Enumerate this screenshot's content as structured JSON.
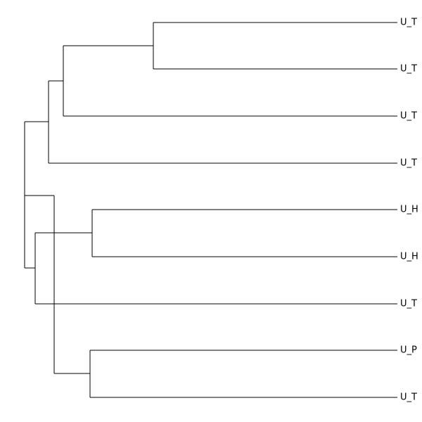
{
  "leaves": [
    "U_T",
    "U_T",
    "U_T",
    "U_T",
    "U_H",
    "U_H",
    "U_T",
    "U_P",
    "U_T"
  ]
}
